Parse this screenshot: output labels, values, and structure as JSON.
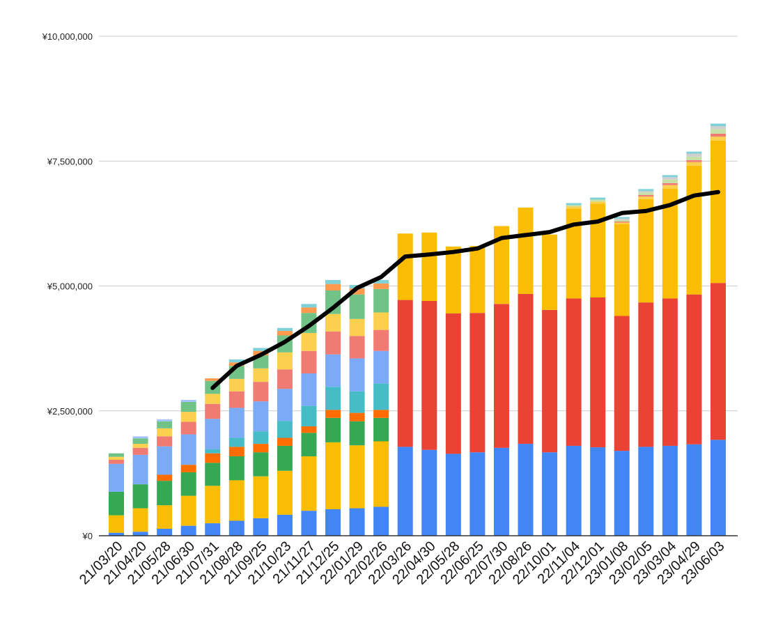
{
  "chart_data": {
    "type": "bar",
    "stacked": true,
    "title": "",
    "xlabel": "",
    "ylabel": "",
    "ylim": [
      0,
      10000000
    ],
    "y_ticks": [
      0,
      2500000,
      5000000,
      7500000,
      10000000
    ],
    "y_tick_labels": [
      "¥0",
      "¥2,500,000",
      "¥5,000,000",
      "¥7,500,000",
      "¥10,000,000"
    ],
    "grid": true,
    "legend": "none",
    "categories": [
      "21/03/20",
      "21/04/20",
      "21/05/28",
      "21/06/30",
      "21/07/31",
      "21/08/28",
      "21/09/25",
      "21/10/23",
      "21/11/27",
      "21/12/25",
      "22/01/29",
      "22/02/26",
      "22/03/26",
      "22/04/30",
      "22/05/28",
      "22/06/25",
      "22/07/30",
      "22/08/26",
      "22/10/01",
      "22/11/04",
      "22/12/01",
      "23/01/08",
      "23/02/05",
      "23/03/04",
      "23/04/29",
      "23/06/03"
    ],
    "series": [
      {
        "color": "#4285f4",
        "values": [
          60000,
          80000,
          140000,
          200000,
          250000,
          300000,
          350000,
          420000,
          500000,
          530000,
          550000,
          580000,
          1780000,
          1720000,
          1640000,
          1670000,
          1760000,
          1840000,
          1670000,
          1800000,
          1770000,
          1700000,
          1780000,
          1800000,
          1830000,
          1920000
        ]
      },
      {
        "color": "#fbbc04",
        "values": [
          350000,
          470000,
          470000,
          600000,
          750000,
          810000,
          840000,
          880000,
          1090000,
          1340000,
          1260000,
          1310000,
          0,
          0,
          0,
          0,
          0,
          0,
          0,
          0,
          0,
          0,
          0,
          0,
          0,
          0
        ]
      },
      {
        "color": "#34a853",
        "values": [
          470000,
          480000,
          490000,
          470000,
          460000,
          480000,
          480000,
          500000,
          470000,
          490000,
          480000,
          470000,
          0,
          0,
          0,
          0,
          0,
          0,
          0,
          0,
          0,
          0,
          0,
          0,
          0,
          0
        ]
      },
      {
        "color": "#ff6d01",
        "values": [
          0,
          0,
          120000,
          150000,
          190000,
          190000,
          170000,
          160000,
          130000,
          160000,
          170000,
          160000,
          0,
          0,
          0,
          0,
          0,
          0,
          0,
          0,
          0,
          0,
          0,
          0,
          0,
          0
        ]
      },
      {
        "color": "#46bdc6",
        "values": [
          0,
          0,
          0,
          0,
          80000,
          180000,
          250000,
          340000,
          410000,
          460000,
          430000,
          530000,
          0,
          0,
          0,
          0,
          0,
          0,
          0,
          0,
          0,
          0,
          0,
          0,
          0,
          0
        ]
      },
      {
        "color": "#7baaf7",
        "values": [
          560000,
          590000,
          570000,
          610000,
          610000,
          600000,
          600000,
          640000,
          650000,
          650000,
          660000,
          650000,
          0,
          0,
          0,
          0,
          0,
          0,
          0,
          0,
          0,
          0,
          0,
          0,
          0,
          0
        ]
      },
      {
        "color": "#f07b72",
        "values": [
          80000,
          140000,
          200000,
          250000,
          300000,
          330000,
          390000,
          390000,
          450000,
          460000,
          450000,
          420000,
          0,
          0,
          0,
          0,
          0,
          0,
          0,
          0,
          0,
          0,
          0,
          0,
          0,
          0
        ]
      },
      {
        "color": "#fcd04f",
        "values": [
          60000,
          80000,
          160000,
          200000,
          200000,
          250000,
          270000,
          340000,
          360000,
          350000,
          340000,
          350000,
          0,
          0,
          0,
          0,
          0,
          0,
          0,
          0,
          0,
          0,
          0,
          0,
          0,
          0
        ]
      },
      {
        "color": "#71c287",
        "values": [
          70000,
          110000,
          140000,
          200000,
          260000,
          260000,
          260000,
          340000,
          400000,
          470000,
          490000,
          470000,
          0,
          0,
          0,
          0,
          0,
          0,
          0,
          0,
          0,
          0,
          0,
          0,
          0,
          0
        ]
      },
      {
        "color": "#ff994d",
        "values": [
          0,
          0,
          0,
          0,
          50000,
          70000,
          90000,
          90000,
          110000,
          130000,
          120000,
          110000,
          0,
          0,
          0,
          0,
          0,
          0,
          0,
          0,
          0,
          0,
          0,
          0,
          0,
          0
        ]
      },
      {
        "color": "#7ed1d7",
        "values": [
          0,
          0,
          0,
          0,
          0,
          60000,
          60000,
          60000,
          70000,
          80000,
          70000,
          70000,
          0,
          0,
          0,
          0,
          0,
          0,
          0,
          0,
          0,
          0,
          0,
          0,
          0,
          0
        ]
      },
      {
        "color": "#a0c3ff",
        "values": [
          0,
          40000,
          40000,
          40000,
          0,
          0,
          0,
          0,
          0,
          0,
          0,
          0,
          0,
          0,
          0,
          0,
          0,
          0,
          0,
          0,
          0,
          0,
          0,
          0,
          0,
          0
        ]
      },
      {
        "color": "#ea4335",
        "values": [
          0,
          0,
          0,
          0,
          0,
          0,
          0,
          0,
          0,
          0,
          0,
          0,
          2940000,
          2980000,
          2810000,
          2790000,
          2880000,
          3000000,
          2850000,
          2950000,
          3000000,
          2700000,
          2890000,
          2950000,
          3000000,
          3140000
        ]
      },
      {
        "color": "#fbbc04",
        "values": [
          0,
          0,
          0,
          0,
          0,
          0,
          0,
          0,
          0,
          0,
          0,
          0,
          1330000,
          1370000,
          1340000,
          1340000,
          1560000,
          1730000,
          1510000,
          1800000,
          1880000,
          1840000,
          2070000,
          2200000,
          2580000,
          2850000
        ]
      },
      {
        "color": "#fcd04f",
        "values": [
          0,
          0,
          0,
          0,
          0,
          0,
          0,
          0,
          0,
          0,
          0,
          0,
          0,
          0,
          0,
          0,
          0,
          0,
          0,
          40000,
          40000,
          30000,
          50000,
          70000,
          70000,
          80000
        ]
      },
      {
        "color": "#f07b72",
        "values": [
          0,
          0,
          0,
          0,
          0,
          0,
          0,
          0,
          0,
          0,
          0,
          0,
          0,
          0,
          0,
          0,
          0,
          0,
          0,
          0,
          0,
          20000,
          30000,
          40000,
          40000,
          60000
        ]
      },
      {
        "color": "#c5e1a5",
        "values": [
          0,
          0,
          0,
          0,
          0,
          0,
          0,
          0,
          0,
          0,
          0,
          0,
          0,
          0,
          0,
          0,
          0,
          0,
          0,
          30000,
          40000,
          30000,
          50000,
          70000,
          70000,
          90000
        ]
      },
      {
        "color": "#cfcfcf",
        "values": [
          0,
          0,
          0,
          0,
          0,
          0,
          0,
          0,
          0,
          0,
          0,
          0,
          0,
          0,
          0,
          0,
          0,
          0,
          0,
          0,
          0,
          30000,
          30000,
          50000,
          60000,
          60000
        ]
      },
      {
        "color": "#7ed1d7",
        "values": [
          0,
          0,
          0,
          0,
          0,
          0,
          0,
          0,
          0,
          0,
          0,
          0,
          0,
          0,
          0,
          0,
          0,
          0,
          0,
          40000,
          40000,
          30000,
          40000,
          40000,
          40000,
          50000
        ]
      }
    ],
    "line": {
      "color": "#000000",
      "start_index": 4,
      "values": [
        null,
        null,
        null,
        null,
        2960000,
        3400000,
        3620000,
        3880000,
        4200000,
        4560000,
        4960000,
        5180000,
        5590000,
        5630000,
        5680000,
        5750000,
        5960000,
        6020000,
        6080000,
        6230000,
        6290000,
        6460000,
        6500000,
        6620000,
        6810000,
        6880000
      ]
    }
  }
}
